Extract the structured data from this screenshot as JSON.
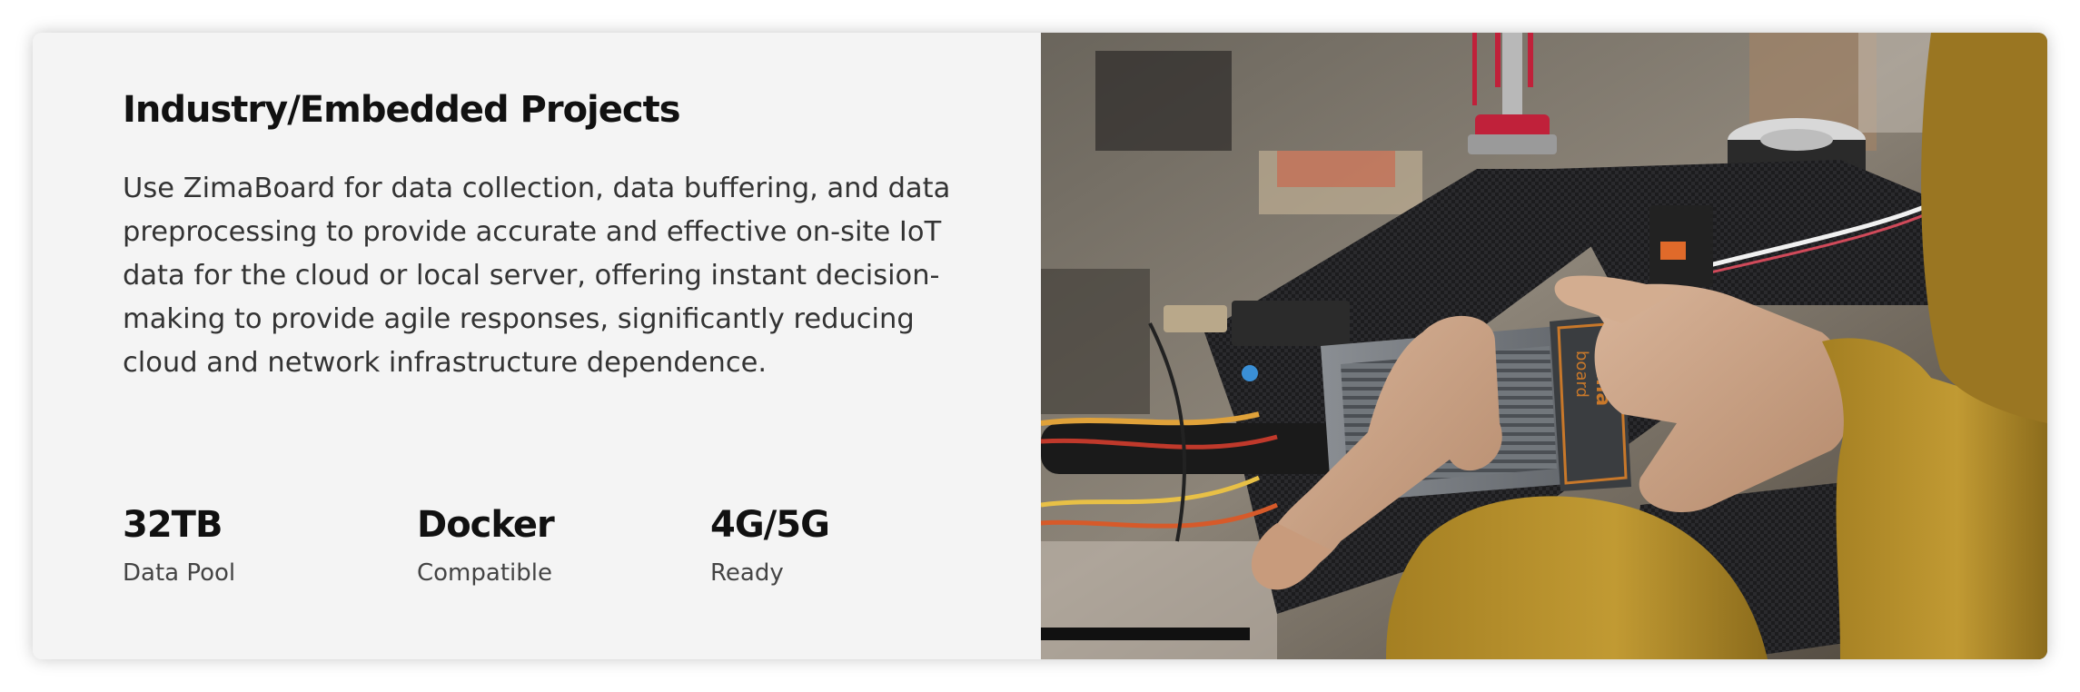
{
  "section": {
    "title": "Industry/Embedded Projects",
    "description": "Use ZimaBoard for data collection, data buffering, and data preprocessing to provide accurate and effective on-site IoT data for the cloud or local server, offering instant decision-making to provide agile responses, significantly reducing cloud and network infrastructure dependence."
  },
  "stats": [
    {
      "value": "32TB",
      "label": "Data Pool"
    },
    {
      "value": "Docker",
      "label": "Compatible"
    },
    {
      "value": "4G/5G",
      "label": "Ready"
    }
  ],
  "photo": {
    "device_label": "Zima board",
    "subject": "hands-holding-zimaboard-on-drone-frame"
  },
  "colors": {
    "card_bg": "#f4f4f4",
    "heading": "#111111",
    "body_text": "#333333",
    "sleeve": "#b8902a",
    "device_accent": "#c8782a"
  }
}
